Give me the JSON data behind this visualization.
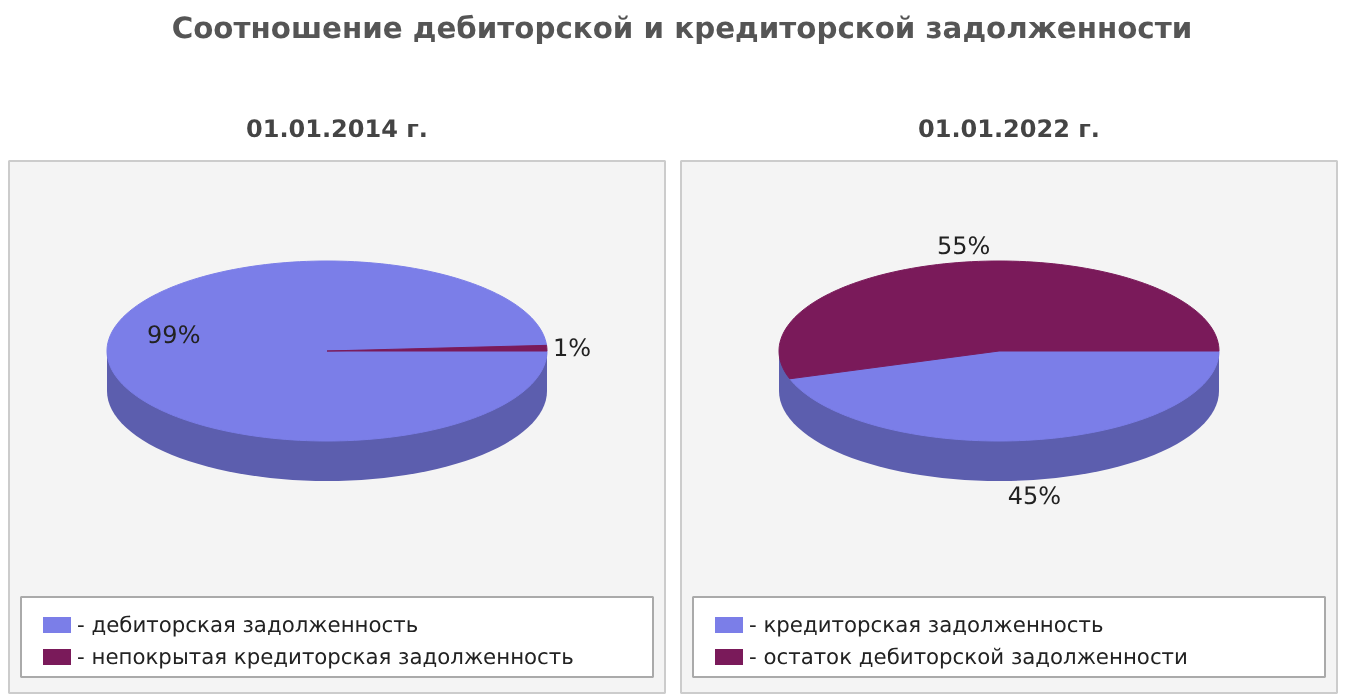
{
  "chart_data": [
    {
      "type": "pie",
      "title": "Соотношение дебиторской и кредиторской задолженности",
      "subtitle": "01.01.2014 г.",
      "categories": [
        "- дебиторская задолженность",
        "- непокрытая кредиторская задолженность"
      ],
      "values": [
        99,
        1
      ],
      "value_labels": [
        "99%",
        "1%"
      ],
      "colors": [
        "#7b7ee8",
        "#7a1a5a"
      ],
      "legend": "bottom"
    },
    {
      "type": "pie",
      "subtitle": "01.01.2022 г.",
      "categories": [
        "- кредиторская задолженность",
        "- остаток дебиторской задолженности"
      ],
      "values": [
        45,
        55
      ],
      "value_labels": [
        "45%",
        "55%"
      ],
      "colors": [
        "#7b7ee8",
        "#7a1a5a"
      ],
      "legend": "bottom"
    }
  ]
}
